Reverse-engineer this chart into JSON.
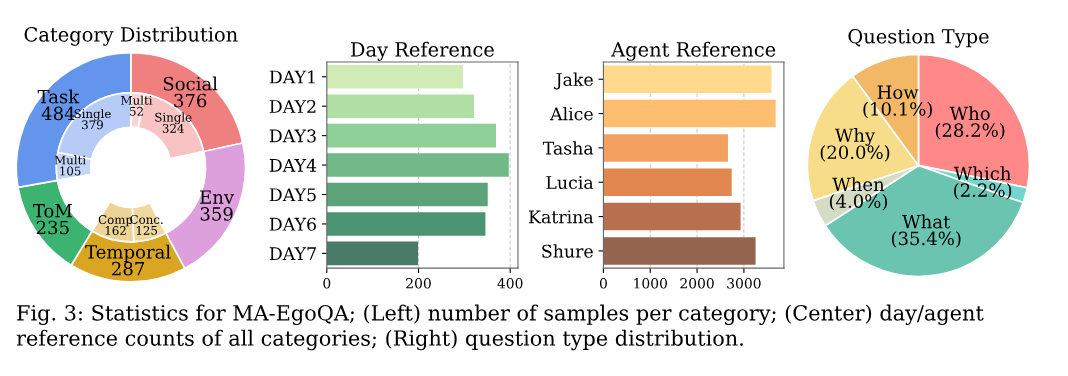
{
  "chart_data": [
    {
      "type": "donut",
      "title": "Category Distribution",
      "annotations": [
        "Fig. 3: Statistics for MA-EgoQA; (Left) number of samples per category; (Center) day/agent reference counts of all categories; (Right) question type distribution."
      ],
      "series": [
        {
          "values": [
            376,
            359,
            287,
            235,
            484
          ],
          "value_labels": [
            "Social\n376",
            "Env\n359",
            "Temporal\n287",
            "ToM\n235",
            "Task\n484"
          ],
          "colors": [
            "#f08080",
            "#dda0dd",
            "#daa520",
            "#3cb371",
            "#6495ed"
          ]
        },
        {
          "values": [
            52,
            324,
            359,
            125,
            162,
            235,
            105,
            379
          ],
          "value_labels": [
            "Multi\n52",
            "Single\n324",
            null,
            "Conc.\n125",
            "Comp\n162",
            null,
            "Multi\n105",
            "Single\n379"
          ],
          "colors": [
            "#fbd3d3",
            "#f8c3c3",
            "#ffffff",
            "#efd9a0",
            "#ecd496",
            "#ffffff",
            "#c4d6f8",
            "#b6ccf6"
          ]
        }
      ]
    },
    {
      "type": "bar",
      "orientation": "horizontal",
      "title": "Day Reference",
      "categories": [
        "DAY1",
        "DAY2",
        "DAY3",
        "DAY4",
        "DAY5",
        "DAY6",
        "DAY7"
      ],
      "values": [
        297,
        321,
        369,
        397,
        351,
        346,
        199
      ],
      "colors": [
        "#d0ebb6",
        "#b0dea5",
        "#8fcf98",
        "#72b98a",
        "#5ca379",
        "#4b9473",
        "#4a7b68"
      ],
      "xlim": [
        0,
        417
      ],
      "xticks": [
        0,
        200,
        400
      ],
      "grid": "x"
    },
    {
      "type": "bar",
      "orientation": "horizontal",
      "title": "Agent Reference",
      "categories": [
        "Jake",
        "Alice",
        "Tasha",
        "Lucia",
        "Katrina",
        "Shure"
      ],
      "values": [
        3590,
        3680,
        2660,
        2740,
        2930,
        3250
      ],
      "colors": [
        "#fed98e",
        "#fdbf6f",
        "#f2a05f",
        "#e0874f",
        "#b87050",
        "#94644e"
      ],
      "xlim": [
        0,
        3855
      ],
      "xticks": [
        0,
        1000,
        2000,
        3000
      ],
      "grid": "x"
    },
    {
      "type": "pie",
      "title": "Question Type",
      "categories": [
        "Who",
        "Which",
        "What",
        "When",
        "Why",
        "How"
      ],
      "values": [
        28.2,
        2.2,
        35.4,
        4.0,
        20.0,
        10.1
      ],
      "value_labels": [
        "(28.2%)",
        "(2.2%)",
        "(35.4%)",
        "(4.0%)",
        "(20.0%)",
        "(10.1%)"
      ],
      "colors": [
        "#ff8888",
        "#72d6cc",
        "#6bc4b0",
        "#d4dcc4",
        "#f7dc8a",
        "#f2b866"
      ]
    }
  ]
}
